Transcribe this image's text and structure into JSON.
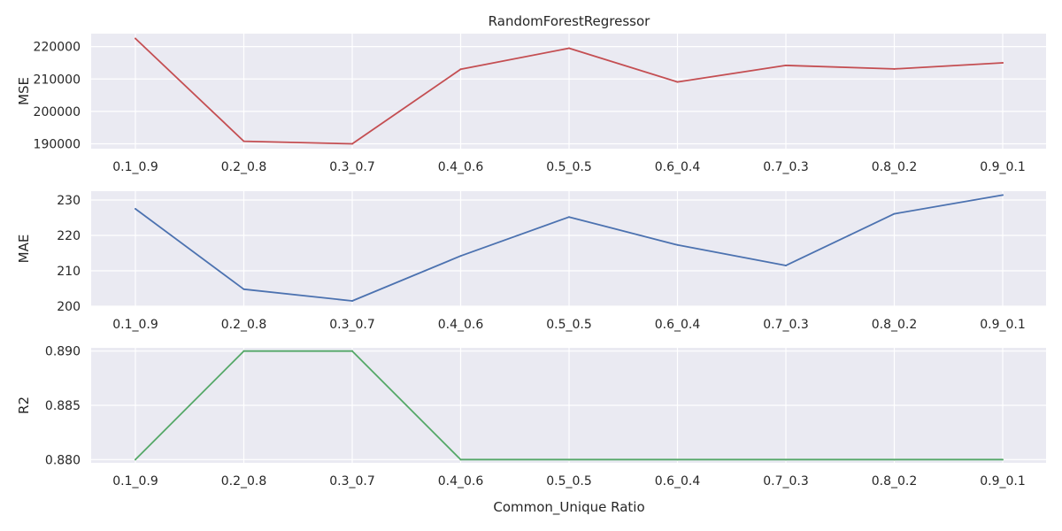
{
  "figure": {
    "title": "RandomForestRegressor",
    "xlabel": "Common_Unique Ratio"
  },
  "chart_data": [
    {
      "type": "line",
      "title": "RandomForestRegressor",
      "xlabel": "",
      "ylabel": "MSE",
      "categories": [
        "0.1_0.9",
        "0.2_0.8",
        "0.3_0.7",
        "0.4_0.6",
        "0.5_0.5",
        "0.6_0.4",
        "0.7_0.3",
        "0.8_0.2",
        "0.9_0.1"
      ],
      "series": [
        {
          "color": "#c44e52",
          "values": [
            222500,
            190800,
            190000,
            213000,
            219500,
            209100,
            214200,
            213100,
            215000
          ]
        }
      ],
      "ylim": [
        188500,
        224000
      ],
      "yticks": [
        190000,
        200000,
        210000,
        220000
      ],
      "grid": true
    },
    {
      "type": "line",
      "xlabel": "",
      "ylabel": "MAE",
      "categories": [
        "0.1_0.9",
        "0.2_0.8",
        "0.3_0.7",
        "0.4_0.6",
        "0.5_0.5",
        "0.6_0.4",
        "0.7_0.3",
        "0.8_0.2",
        "0.9_0.1"
      ],
      "series": [
        {
          "color": "#4c72b0",
          "values": [
            227.5,
            204.8,
            201.5,
            214.2,
            225.2,
            217.3,
            211.5,
            226.1,
            231.4
          ]
        }
      ],
      "ylim": [
        200,
        232.5
      ],
      "yticks": [
        200,
        210,
        220,
        230
      ],
      "grid": true
    },
    {
      "type": "line",
      "xlabel": "Common_Unique Ratio",
      "ylabel": "R2",
      "categories": [
        "0.1_0.9",
        "0.2_0.8",
        "0.3_0.7",
        "0.4_0.6",
        "0.5_0.5",
        "0.6_0.4",
        "0.7_0.3",
        "0.8_0.2",
        "0.9_0.1"
      ],
      "series": [
        {
          "color": "#55a868",
          "values": [
            0.88,
            0.89,
            0.89,
            0.88,
            0.88,
            0.88,
            0.88,
            0.88,
            0.88
          ]
        }
      ],
      "ylim": [
        0.8797,
        0.8903
      ],
      "yticks": [
        0.88,
        0.885,
        0.89
      ],
      "ytick_labels": [
        "0.880",
        "0.885",
        "0.890"
      ],
      "grid": true
    }
  ]
}
